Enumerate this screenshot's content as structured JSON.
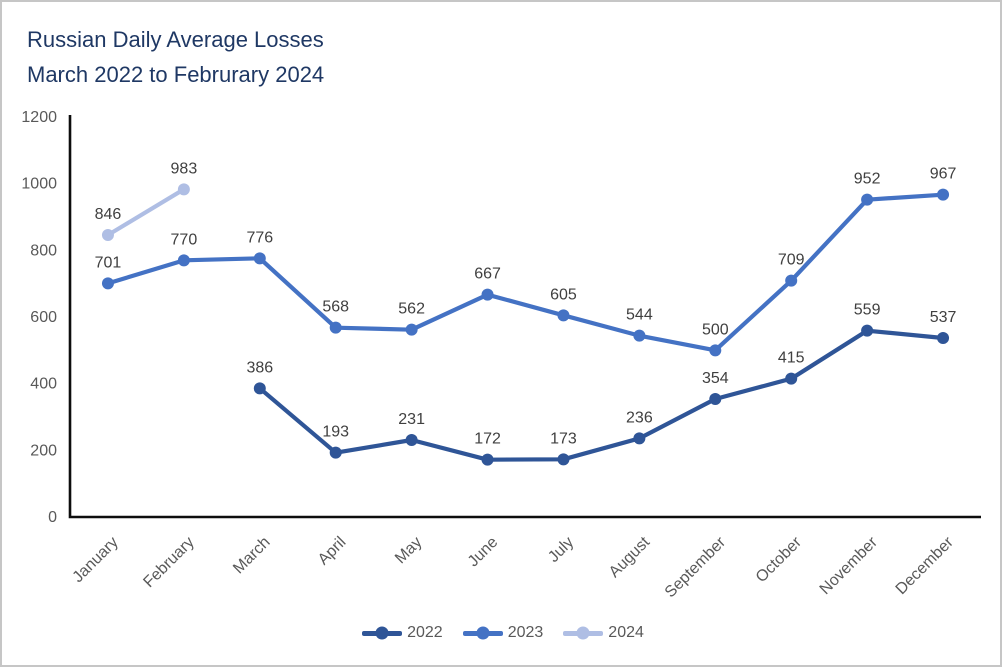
{
  "colors": {
    "title": "#1F3864",
    "axis": "#0d0d0d",
    "tick_label": "#595959",
    "data_label": "#404040",
    "page_border": "#c6c6c6"
  },
  "chart_data": {
    "type": "line",
    "title": "Russian Daily Average Losses March 2022 to Februrary 2024",
    "title_lines": [
      "Russian Daily Average Losses",
      "March 2022 to Februrary 2024"
    ],
    "categories": [
      "January",
      "February",
      "March",
      "April",
      "May",
      "June",
      "July",
      "August",
      "September",
      "October",
      "November",
      "December"
    ],
    "y_ticks": [
      0,
      200,
      400,
      600,
      800,
      1000,
      1200
    ],
    "ylim": [
      0,
      1200
    ],
    "xlabel": "",
    "ylabel": "",
    "grid": false,
    "legend_position": "bottom",
    "data_labels_shown": true,
    "series": [
      {
        "name": "2022",
        "color": "#2F5597",
        "values": [
          null,
          null,
          386,
          193,
          231,
          172,
          173,
          236,
          354,
          415,
          559,
          537
        ]
      },
      {
        "name": "2023",
        "color": "#4472C4",
        "values": [
          701,
          770,
          776,
          568,
          562,
          667,
          605,
          544,
          500,
          709,
          952,
          967
        ]
      },
      {
        "name": "2024",
        "color": "#AFBEE4",
        "values": [
          846,
          983,
          null,
          null,
          null,
          null,
          null,
          null,
          null,
          null,
          null,
          null
        ]
      }
    ]
  }
}
